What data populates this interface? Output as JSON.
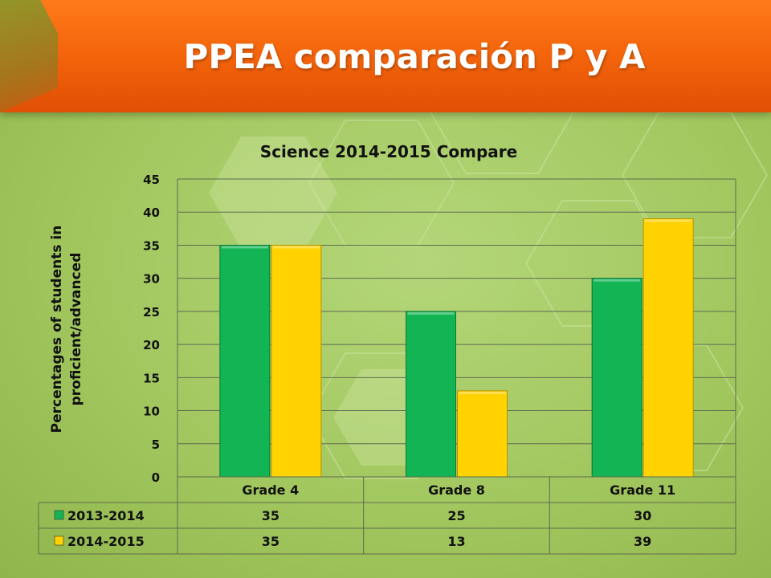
{
  "slide": {
    "title": "PPEA comparación P y A"
  },
  "colors": {
    "series1": "#12b454",
    "series2": "#ffd200",
    "banner": "#f2620a"
  },
  "chart_data": {
    "type": "bar",
    "title": "Science 2014-2015 Compare",
    "ylabel": "Percentages of students in proficient/advanced",
    "ylabel_lines": [
      "Percentages of students in",
      "proficient/advanced"
    ],
    "xlabel": "",
    "categories": [
      "Grade 4",
      "Grade 8",
      "Grade 11"
    ],
    "series": [
      {
        "name": "2013-2014",
        "values": [
          35,
          25,
          30
        ]
      },
      {
        "name": "2014-2015",
        "values": [
          35,
          13,
          39
        ]
      }
    ],
    "ylim": [
      0,
      45
    ],
    "yticks": [
      0,
      5,
      10,
      15,
      20,
      25,
      30,
      35,
      40,
      45
    ],
    "grid": true,
    "legend": "data-table"
  }
}
